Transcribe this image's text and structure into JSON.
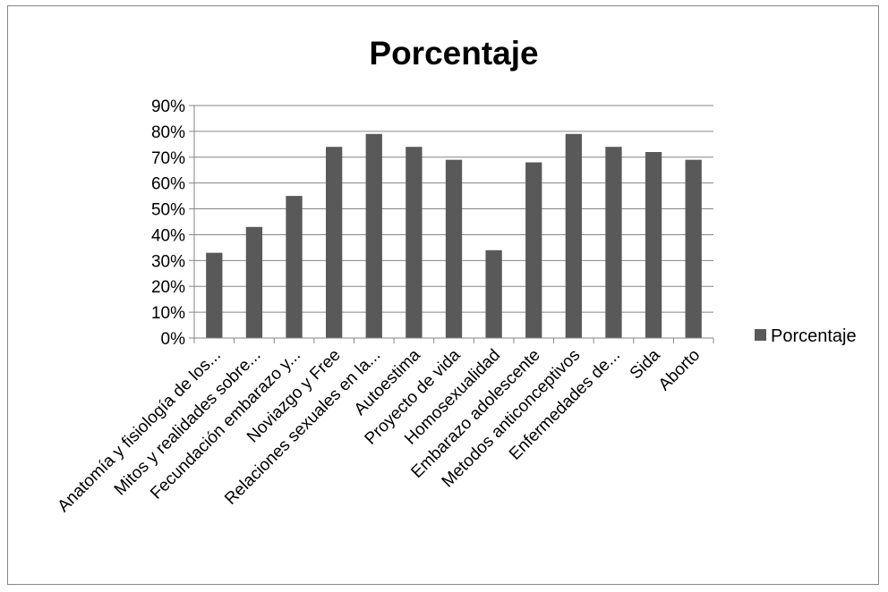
{
  "chart_data": {
    "type": "bar",
    "title": "Porcentaje",
    "xlabel": "",
    "ylabel": "",
    "ylim": [
      0,
      90
    ],
    "y_ticks": [
      "0%",
      "10%",
      "20%",
      "30%",
      "40%",
      "50%",
      "60%",
      "70%",
      "80%",
      "90%"
    ],
    "grid": true,
    "legend_position": "right",
    "categories": [
      "Anatomía y fisiología de los...",
      "Mitos y realidades sobre...",
      "Fecundación embarazo y...",
      "Noviazgo y Free",
      "Relaciones sexuales en la...",
      "Autoestima",
      "Proyecto de vida",
      "Homosexualidad",
      "Embarazo adolescente",
      "Metodos anticonceptivos",
      "Enfermedades de...",
      "Sida",
      "Aborto"
    ],
    "series": [
      {
        "name": "Porcentaje",
        "color": "#595959",
        "values": [
          33,
          43,
          55,
          74,
          79,
          74,
          69,
          34,
          68,
          79,
          74,
          72,
          69
        ]
      }
    ]
  }
}
